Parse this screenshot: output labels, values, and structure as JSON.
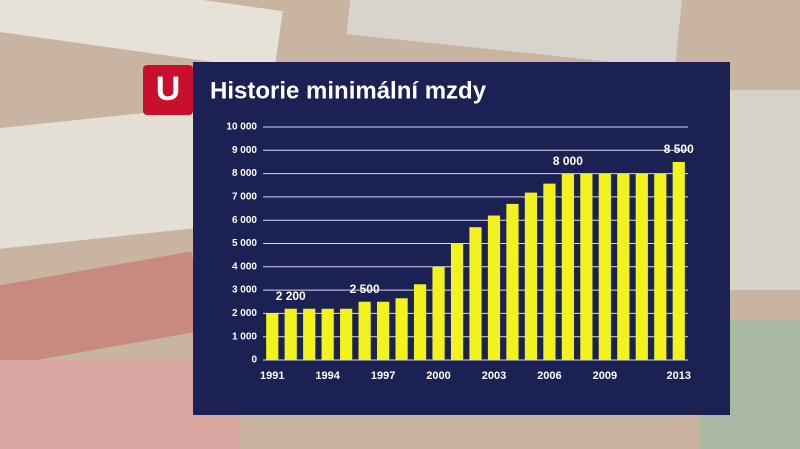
{
  "chart_data": {
    "type": "bar",
    "title": "Historie minimální mzdy",
    "logo": "U",
    "categories": [
      "1991",
      null,
      null,
      "1994",
      null,
      null,
      "1997",
      null,
      null,
      "2000",
      null,
      null,
      "2003",
      null,
      null,
      "2006",
      null,
      null,
      "2009",
      null,
      null,
      null,
      "2013"
    ],
    "values": [
      2000,
      2200,
      2200,
      2200,
      2200,
      2500,
      2500,
      2650,
      3250,
      4000,
      5000,
      5700,
      6200,
      6700,
      7185,
      7570,
      8000,
      8000,
      8000,
      8000,
      8000,
      8000,
      8500
    ],
    "value_labels": [
      null,
      "2 200",
      null,
      null,
      null,
      "2 500",
      null,
      null,
      null,
      null,
      null,
      null,
      null,
      null,
      null,
      null,
      "8 000",
      null,
      null,
      null,
      null,
      null,
      "8 500"
    ],
    "color": "#f2f21c",
    "ylim": [
      0,
      10000
    ],
    "yticks": [
      0,
      {
        "value": 1000,
        "label": "1 000"
      },
      {
        "value": 2000,
        "label": "2 000"
      },
      {
        "value": 3000,
        "label": "3 000"
      },
      {
        "value": 4000,
        "label": "4 000"
      },
      {
        "value": 5000,
        "label": "5 000"
      },
      {
        "value": 6000,
        "label": "6 000"
      },
      {
        "value": 7000,
        "label": "7 000"
      },
      {
        "value": 8000,
        "label": "8 000"
      },
      {
        "value": 9000,
        "label": "9 000"
      },
      {
        "value": 10000,
        "label": "10 000"
      }
    ],
    "grid": true
  }
}
